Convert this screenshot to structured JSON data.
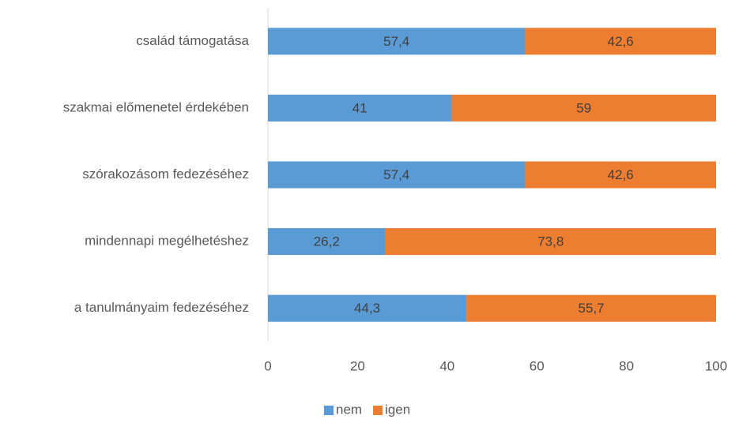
{
  "chart_data": {
    "type": "stacked-barh",
    "categories": [
      "család támogatása",
      "szakmai előmenetel érdekében",
      "szórakozásom fedezéséhez",
      "mindennapi megélhetéshez",
      "a tanulmányaim fedezéséhez"
    ],
    "series": [
      {
        "name": "nem",
        "color": "#5b9bd5",
        "values": [
          57.4,
          41,
          57.4,
          26.2,
          44.3
        ],
        "value_labels": [
          "57,4",
          "41",
          "57,4",
          "26,2",
          "44,3"
        ]
      },
      {
        "name": "igen",
        "color": "#ed7d31",
        "values": [
          42.6,
          59,
          42.6,
          73.8,
          55.7
        ],
        "value_labels": [
          "42,6",
          "59",
          "42,6",
          "73,8",
          "55,7"
        ]
      }
    ],
    "xlim": [
      0,
      100
    ],
    "xticks": [
      0,
      20,
      40,
      60,
      80,
      100
    ],
    "grid": false,
    "legend": "bottom"
  }
}
